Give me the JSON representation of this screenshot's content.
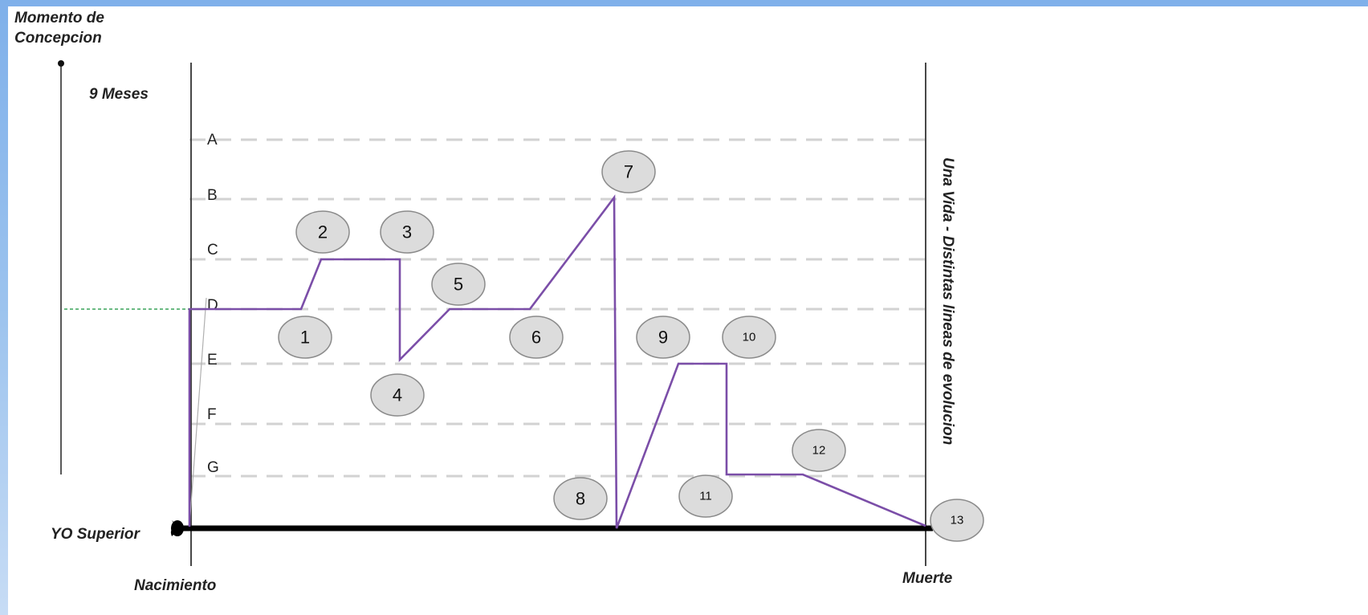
{
  "labels": {
    "conception_line1": "Momento de",
    "conception_line2": "Concepcion",
    "nine_months": "9 Meses",
    "yo_superior": "YO Superior",
    "birth": "Nacimiento",
    "death": "Muerte",
    "vertical_title": "Una Vida - Distintas lineas de evolucion"
  },
  "levels": [
    "A",
    "B",
    "C",
    "D",
    "E",
    "F",
    "G"
  ],
  "markers": [
    "1",
    "2",
    "3",
    "4",
    "5",
    "6",
    "7",
    "8",
    "9",
    "10",
    "11",
    "12",
    "13"
  ],
  "colors": {
    "path": "#7b4ea8",
    "dashed": "#d2d2d2",
    "green_dashed": "#3aa35a",
    "badge_fill": "#dcdcdc",
    "badge_stroke": "#8a8a8a",
    "frame": "#8fb9ec"
  }
}
